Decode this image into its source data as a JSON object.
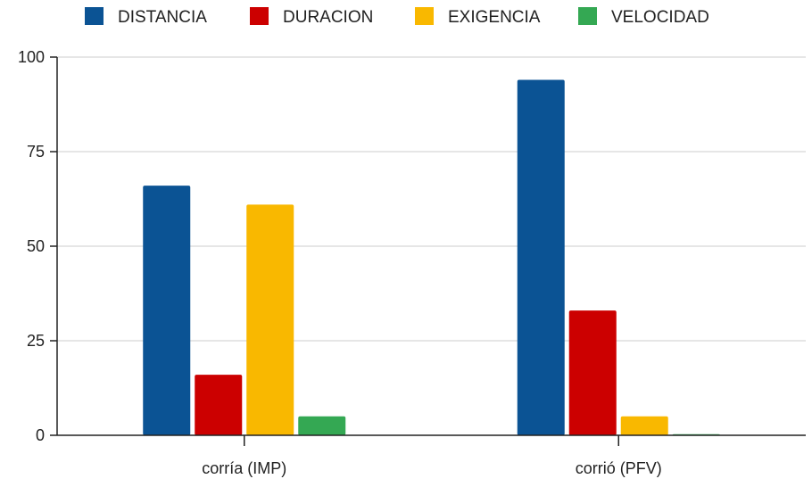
{
  "chart_data": {
    "type": "bar",
    "title": "",
    "xlabel": "",
    "ylabel": "",
    "ylim": [
      0,
      100
    ],
    "yticks": [
      0,
      25,
      50,
      75,
      100
    ],
    "grid": true,
    "legend_position": "top",
    "categories": [
      "corría (IMP)",
      "corrió (PFV)"
    ],
    "series": [
      {
        "name": "DISTANCIA",
        "color": "#0b5394",
        "values": [
          66,
          94
        ]
      },
      {
        "name": "DURACION",
        "color": "#cc0000",
        "values": [
          16,
          33
        ]
      },
      {
        "name": "EXIGENCIA",
        "color": "#f9b800",
        "values": [
          61,
          5
        ]
      },
      {
        "name": "VELOCIDAD",
        "color": "#34a853",
        "values": [
          5,
          0.3
        ]
      }
    ]
  }
}
